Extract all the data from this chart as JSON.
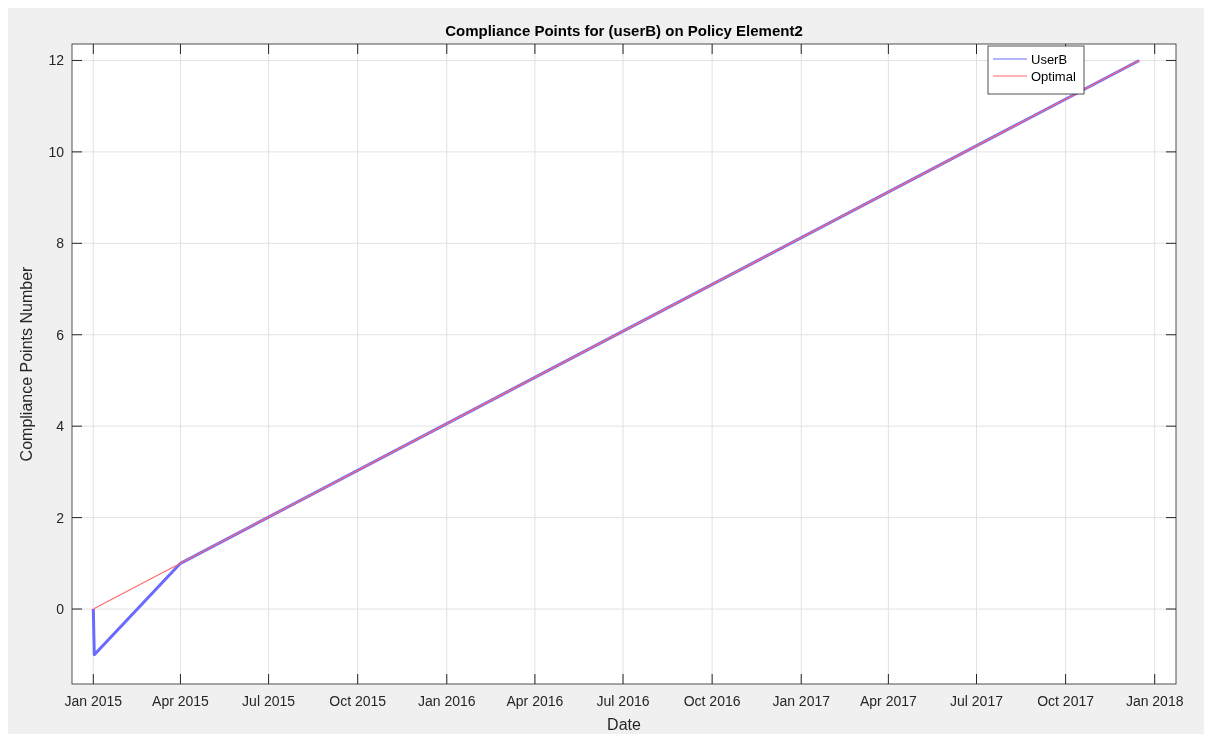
{
  "chart_data": {
    "type": "line",
    "title": "Compliance Points for (userB) on Policy Element2",
    "xlabel": "Date",
    "ylabel": "Compliance Points Number",
    "series": [
      {
        "name": "UserB",
        "color": "#6a6aff",
        "x": [
          "2015-01-01",
          "2015-01-02",
          "2015-04-01",
          "2017-12-16"
        ],
        "values": [
          0,
          -1,
          1,
          12
        ]
      },
      {
        "name": "Optimal",
        "color": "#ff6a6a",
        "x": [
          "2015-01-01",
          "2017-12-16"
        ],
        "values": [
          0,
          12
        ]
      }
    ],
    "xlim": [
      "2014-12-10",
      "2018-01-23"
    ],
    "ylim": [
      -1.64,
      12.36
    ],
    "xticks": [
      {
        "value": "2015-01-01",
        "label": "Jan 2015"
      },
      {
        "value": "2015-04-01",
        "label": "Apr 2015"
      },
      {
        "value": "2015-07-01",
        "label": "Jul 2015"
      },
      {
        "value": "2015-10-01",
        "label": "Oct 2015"
      },
      {
        "value": "2016-01-01",
        "label": "Jan 2016"
      },
      {
        "value": "2016-04-01",
        "label": "Apr 2016"
      },
      {
        "value": "2016-07-01",
        "label": "Jul 2016"
      },
      {
        "value": "2016-10-01",
        "label": "Oct 2016"
      },
      {
        "value": "2017-01-01",
        "label": "Jan 2017"
      },
      {
        "value": "2017-04-01",
        "label": "Apr 2017"
      },
      {
        "value": "2017-07-01",
        "label": "Jul 2017"
      },
      {
        "value": "2017-10-01",
        "label": "Oct 2017"
      },
      {
        "value": "2018-01-01",
        "label": "Jan 2018"
      }
    ],
    "yticks": [
      0,
      2,
      4,
      6,
      8,
      10,
      12
    ],
    "grid": true,
    "legend": "top right",
    "marker": "none",
    "line_style": "solid"
  }
}
